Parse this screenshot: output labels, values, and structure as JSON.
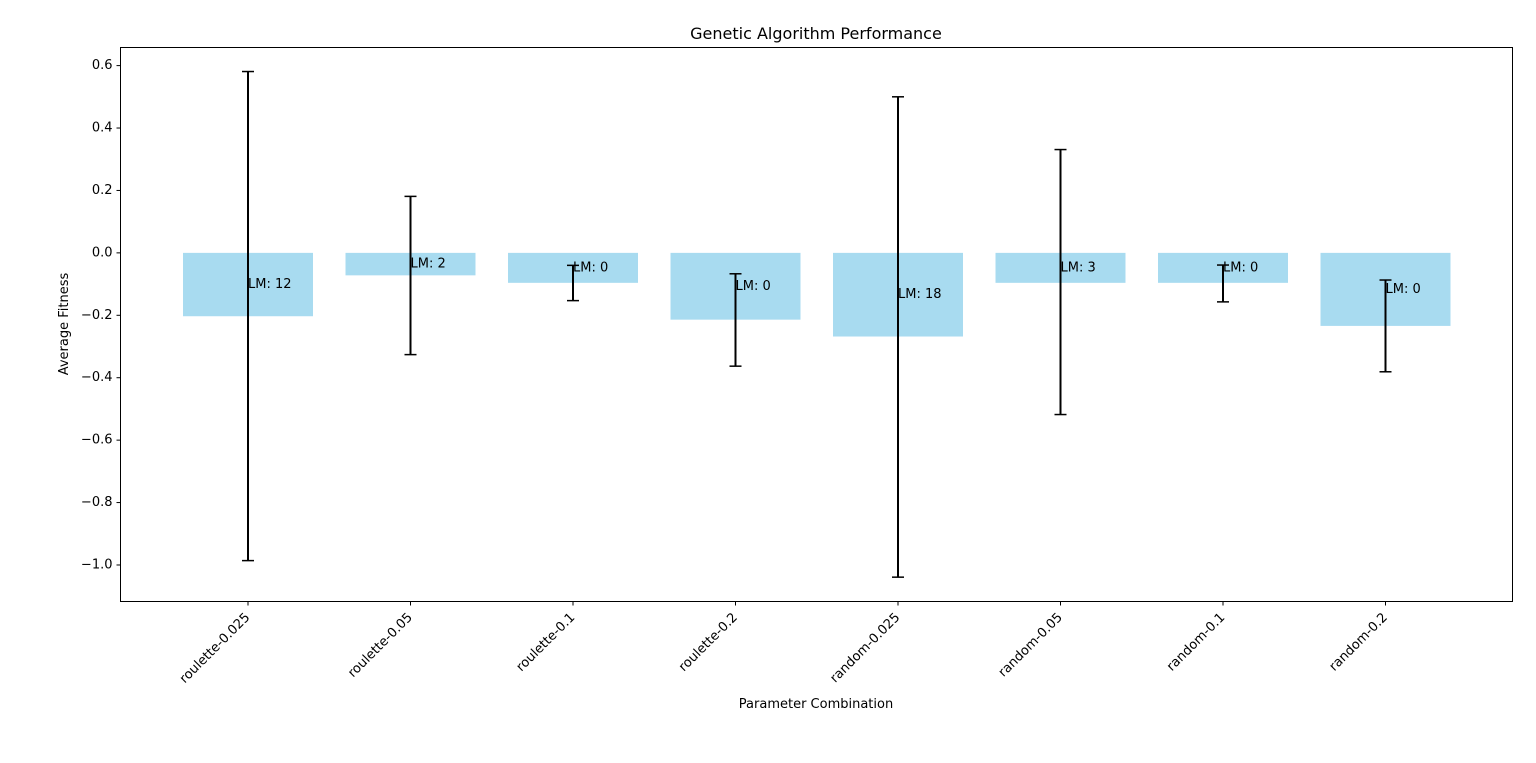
{
  "chart_data": {
    "type": "bar",
    "title": "Genetic Algorithm Performance",
    "xlabel": "Parameter Combination",
    "ylabel": "Average Fitness",
    "categories": [
      "roulette-0.025",
      "roulette-0.05",
      "roulette-0.1",
      "roulette-0.2",
      "random-0.025",
      "random-0.05",
      "random-0.1",
      "random-0.2"
    ],
    "values": [
      -0.203,
      -0.072,
      -0.096,
      -0.214,
      -0.268,
      -0.096,
      -0.096,
      -0.234
    ],
    "error_lower": [
      -0.986,
      -0.326,
      -0.153,
      -0.363,
      -1.039,
      -0.518,
      -0.157,
      -0.381
    ],
    "error_upper": [
      0.581,
      0.181,
      -0.04,
      -0.067,
      0.5,
      0.331,
      -0.039,
      -0.087
    ],
    "bar_labels": [
      "LM: 12",
      "LM: 2",
      "LM: 0",
      "LM: 0",
      "LM: 18",
      "LM: 3",
      "LM: 0",
      "LM: 0"
    ],
    "ylim": [
      -1.117,
      0.658
    ],
    "yticks": [
      0.6,
      0.4,
      0.2,
      0.0,
      -0.2,
      -0.4,
      -0.6,
      -0.8,
      -1.0
    ],
    "ytick_labels": [
      "0.6",
      "0.4",
      "0.2",
      "0.0",
      "−0.2",
      "−0.4",
      "−0.6",
      "−0.8",
      "−1.0"
    ],
    "bar_color": "#a8dbf0",
    "error_color": "#000000",
    "grid": false,
    "legend": "none"
  }
}
